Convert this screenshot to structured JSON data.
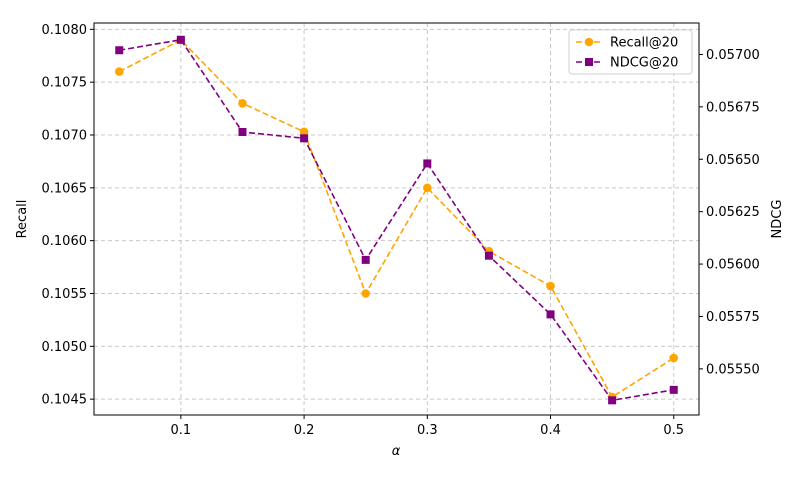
{
  "chart_data": {
    "type": "line",
    "title": "",
    "xlabel": "α",
    "ylabel_left": "Recall",
    "ylabel_right": "NDCG",
    "x": [
      0.05,
      0.1,
      0.15,
      0.2,
      0.25,
      0.3,
      0.35,
      0.4,
      0.45,
      0.5
    ],
    "x_ticks": [
      "0.1",
      "0.2",
      "0.3",
      "0.4",
      "0.5"
    ],
    "y_left_ticks": [
      "0.1045",
      "0.1050",
      "0.1055",
      "0.1060",
      "0.1065",
      "0.1070",
      "0.1075",
      "0.1080"
    ],
    "y_right_ticks": [
      "0.05550",
      "0.05575",
      "0.05600",
      "0.05625",
      "0.05650",
      "0.05675",
      "0.05700"
    ],
    "xlim": [
      0.0295,
      0.5205
    ],
    "ylim_left": [
      0.10435,
      0.10806
    ],
    "ylim_right": [
      0.05528,
      0.05715
    ],
    "grid": true,
    "legend_position": "top-right",
    "series": [
      {
        "name": "Recall@20",
        "axis": "left",
        "color": "#FFA500",
        "marker": "circle",
        "linestyle": "dashed",
        "values": [
          0.1076,
          0.1079,
          0.1073,
          0.10703,
          0.1055,
          0.1065,
          0.1059,
          0.10557,
          0.10452,
          0.10489
        ]
      },
      {
        "name": "NDCG@20",
        "axis": "right",
        "color": "#800080",
        "marker": "square",
        "linestyle": "dashed",
        "values": [
          0.05702,
          0.05707,
          0.05663,
          0.0566,
          0.05602,
          0.05648,
          0.05604,
          0.05576,
          0.05535,
          0.0554
        ]
      }
    ]
  }
}
